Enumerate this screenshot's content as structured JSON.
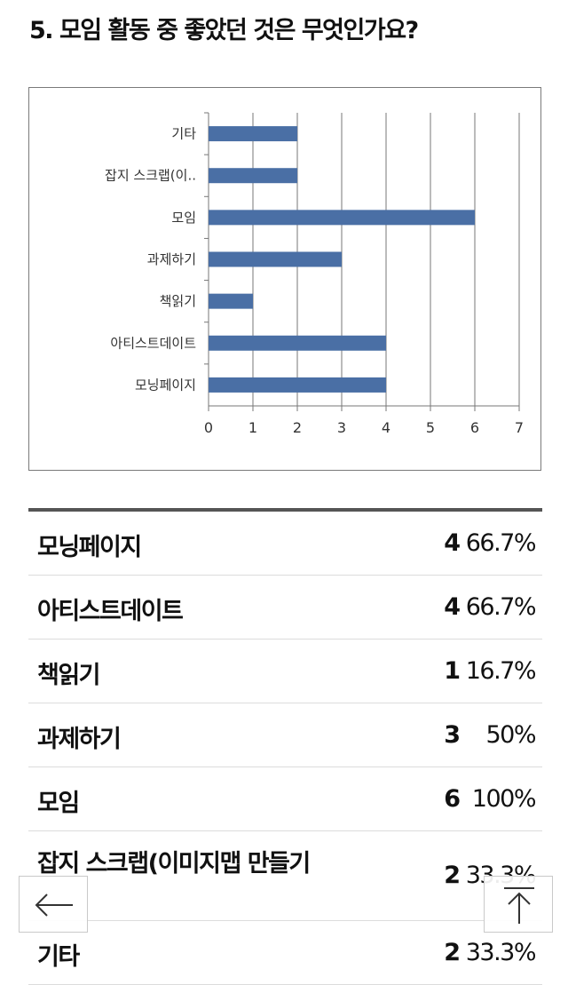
{
  "question": {
    "title": "5. 모임 활동 중 좋았던 것은 무엇인가요?"
  },
  "chart_data": {
    "type": "bar",
    "orientation": "horizontal",
    "categories": [
      "기타",
      "잡지 스크랩(이..",
      "모임",
      "과제하기",
      "책읽기",
      "아티스트데이트",
      "모닝페이지"
    ],
    "values": [
      2,
      2,
      6,
      3,
      1,
      4,
      4
    ],
    "xlim": [
      0,
      7
    ],
    "xticks": [
      "0",
      "1",
      "2",
      "3",
      "4",
      "5",
      "6",
      "7"
    ],
    "grid": true,
    "bar_color": "#4a6fa5",
    "title": "",
    "xlabel": "",
    "ylabel": ""
  },
  "results": {
    "rows": [
      {
        "label": "모닝페이지",
        "count": "4",
        "percent": "66.7%"
      },
      {
        "label": "아티스트데이트",
        "count": "4",
        "percent": "66.7%"
      },
      {
        "label": "책읽기",
        "count": "1",
        "percent": "16.7%"
      },
      {
        "label": "과제하기",
        "count": "3",
        "percent": "50%"
      },
      {
        "label": "모임",
        "count": "6",
        "percent": "100%"
      },
      {
        "label": "잡지 스크랩(이미지맵 만들기",
        "count": "2",
        "percent": "33.3%"
      },
      {
        "label": "기타",
        "count": "2",
        "percent": "33.3%"
      }
    ]
  },
  "navigation": {
    "back_icon": "arrow-left-icon",
    "top_icon": "arrow-up-to-top-icon"
  }
}
